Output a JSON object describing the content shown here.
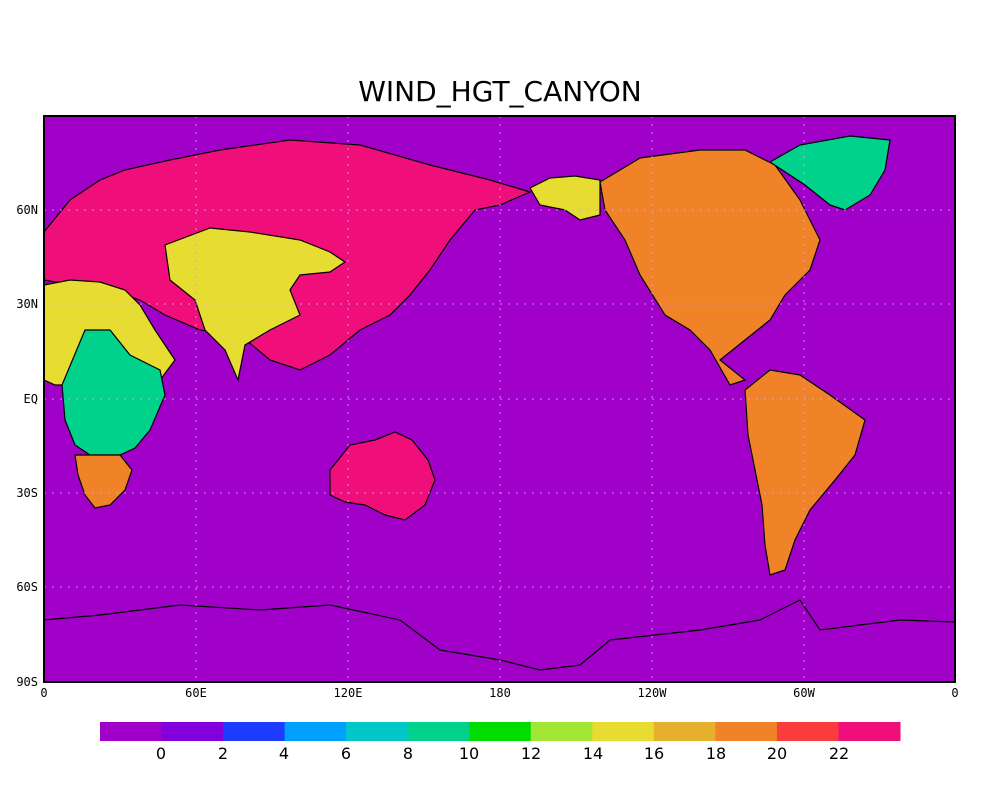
{
  "title": "WIND_HGT_CANYON",
  "map": {
    "projection": "cylindrical equidistant",
    "central_longitude": 180,
    "grid": "dotted",
    "x_tick_labels": [
      "0",
      "60E",
      "120E",
      "180",
      "120W",
      "60W",
      "0"
    ],
    "y_tick_labels": [
      "60N",
      "30N",
      "EQ",
      "30S",
      "60S",
      "90S"
    ],
    "ocean_color": "#a000c8",
    "regions": [
      {
        "name": "Europe / Siberia / East Asia",
        "level_color": "#f00f7a"
      },
      {
        "name": "Central Asia / Tibet",
        "level_color": "#e6dc32"
      },
      {
        "name": "North Africa / Arabia",
        "level_color": "#e6dc32"
      },
      {
        "name": "Central Africa",
        "level_color": "#00d28c"
      },
      {
        "name": "Southern Africa",
        "level_color": "#f08228"
      },
      {
        "name": "Australia",
        "level_color": "#f00f7a"
      },
      {
        "name": "North America",
        "level_color": "#f08228"
      },
      {
        "name": "Alaska",
        "level_color": "#e6dc32"
      },
      {
        "name": "South America",
        "level_color": "#f08228"
      },
      {
        "name": "Greenland",
        "level_color": "#00d28c"
      }
    ]
  },
  "colorbar": {
    "colors": [
      "#a000c8",
      "#8200dc",
      "#1e3cff",
      "#00a0ff",
      "#00c8c8",
      "#00d28c",
      "#00dc00",
      "#a0e632",
      "#e6dc32",
      "#e6af2d",
      "#f08228",
      "#fa3c3c",
      "#f00f7a"
    ],
    "labels": [
      "0",
      "2",
      "4",
      "6",
      "8",
      "10",
      "12",
      "14",
      "16",
      "18",
      "20",
      "22"
    ]
  }
}
